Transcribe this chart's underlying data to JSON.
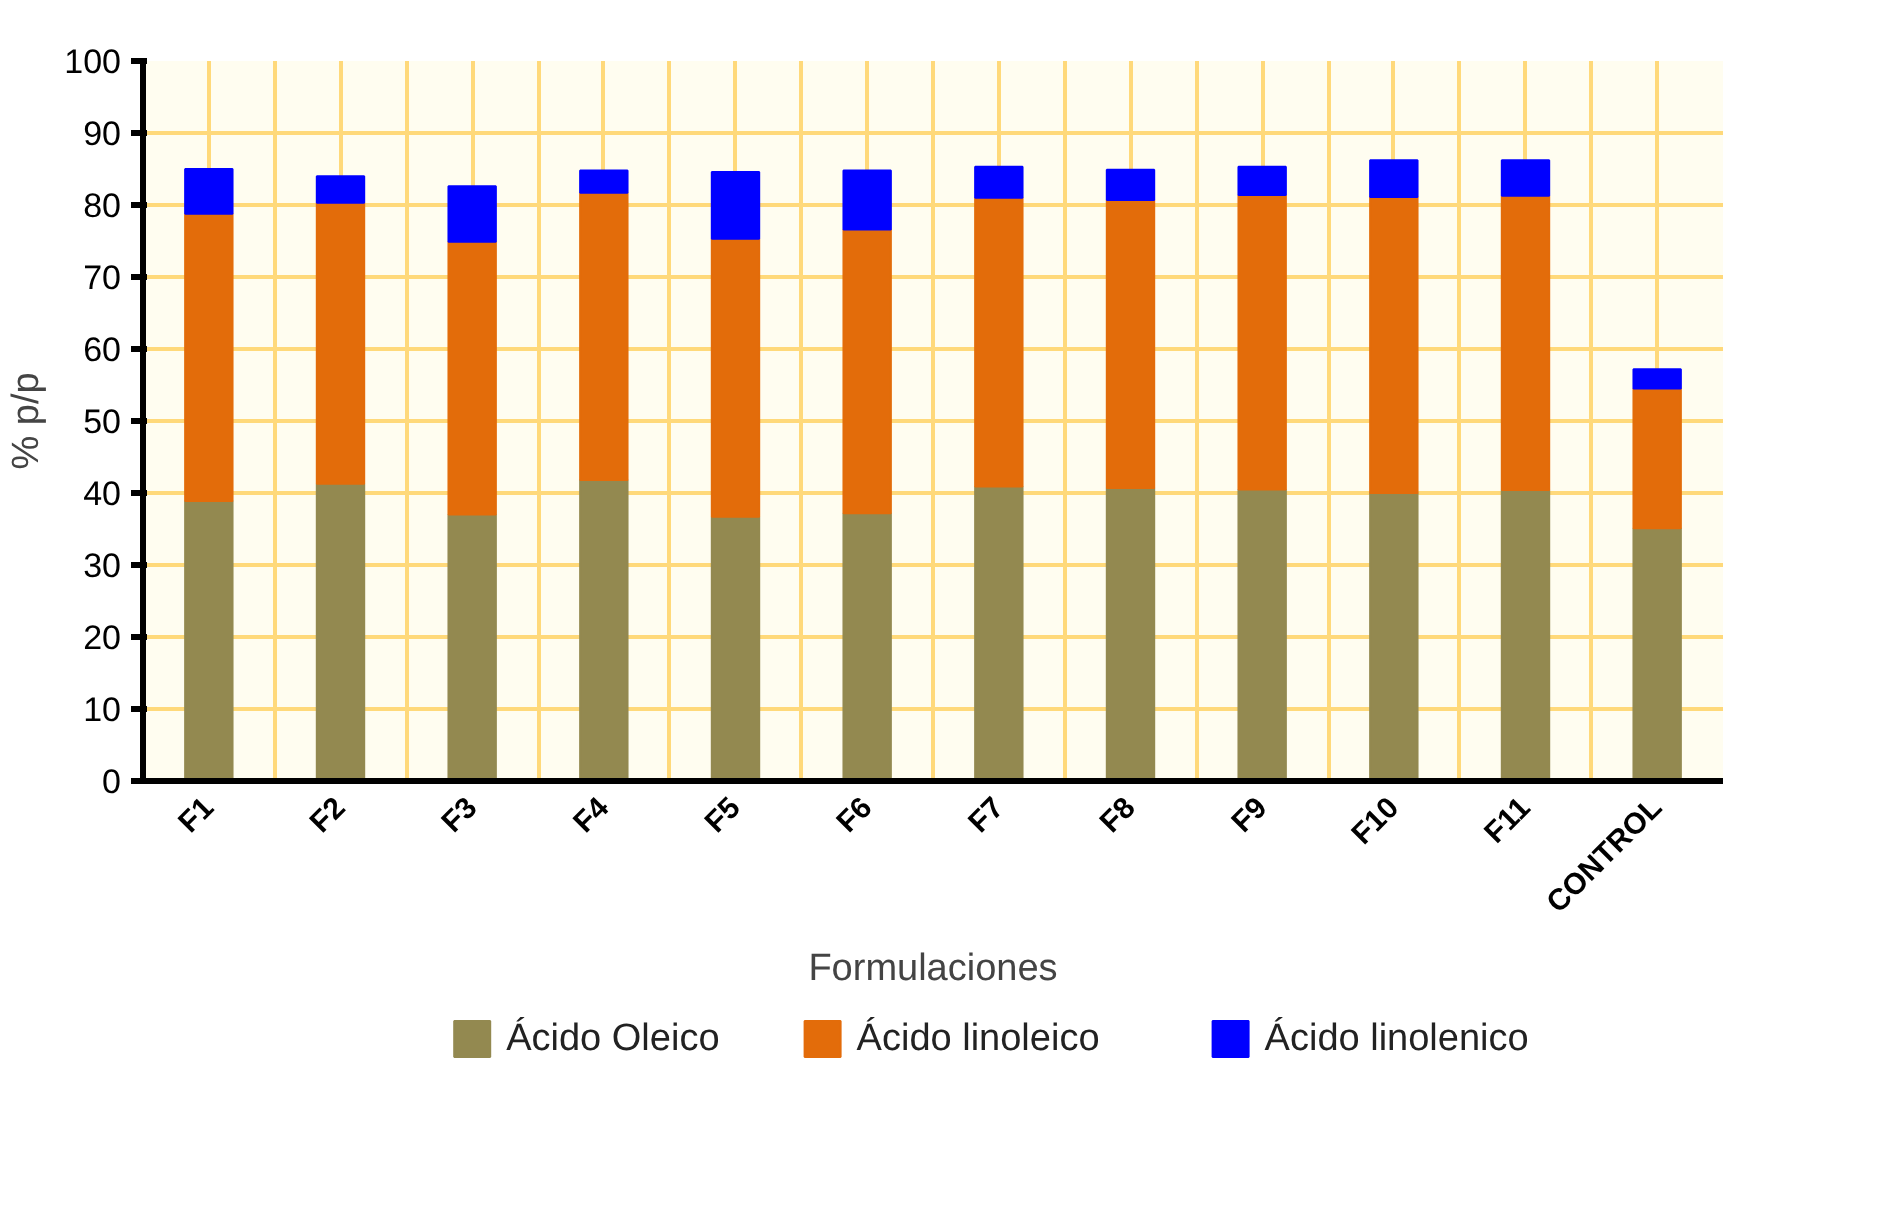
{
  "chart_data": {
    "type": "bar",
    "stacked": true,
    "xlabel": "Formulaciones",
    "ylabel": "% p/p",
    "categories": [
      "F1",
      "F2",
      "F3",
      "F4",
      "F5",
      "F6",
      "F7",
      "F8",
      "F9",
      "F10",
      "F11",
      "CONTROL"
    ],
    "series": [
      {
        "name": "Ácido Oleico",
        "color": "#938950",
        "values": [
          38.9,
          41.3,
          37.0,
          41.8,
          36.7,
          37.2,
          40.9,
          40.7,
          40.5,
          40.0,
          40.4,
          35.1
        ]
      },
      {
        "name": "Ácido linoleico",
        "color": "#e36c0a",
        "values": [
          39.9,
          39.0,
          37.9,
          39.9,
          38.6,
          39.4,
          40.1,
          40.0,
          40.9,
          41.1,
          40.9,
          19.4
        ]
      },
      {
        "name": "Ácido linolenico",
        "color": "#0000ff",
        "values": [
          6.2,
          3.7,
          7.7,
          3.1,
          9.3,
          8.2,
          4.3,
          4.2,
          3.9,
          5.1,
          4.9,
          2.7
        ]
      }
    ],
    "ylim": [
      0,
      100
    ],
    "yticks": [
      0,
      10,
      20,
      30,
      40,
      50,
      60,
      70,
      80,
      90,
      100
    ],
    "grid": true,
    "legend": "bottom"
  }
}
